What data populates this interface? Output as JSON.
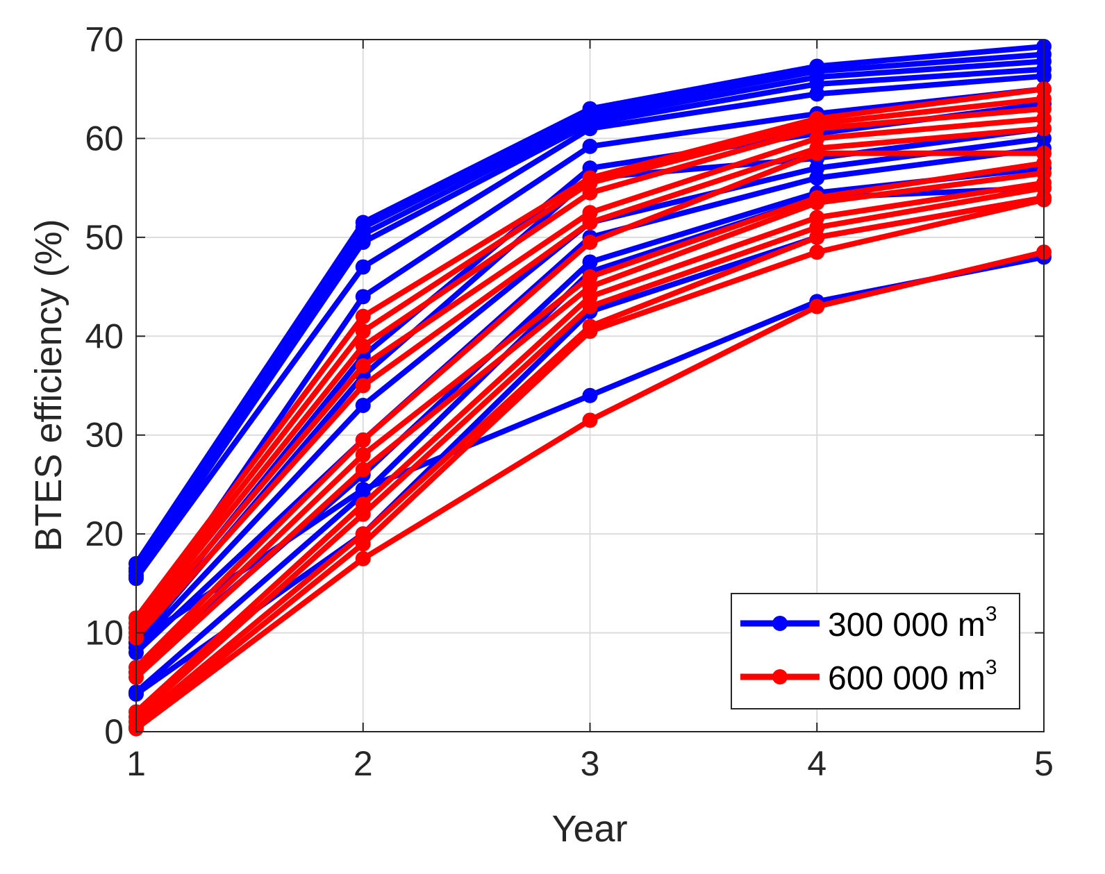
{
  "chart_data": {
    "type": "line",
    "title": "",
    "xlabel": "Year",
    "ylabel": "BTES efficiency (%)",
    "x": [
      1,
      2,
      3,
      4,
      5
    ],
    "xlim": [
      1,
      5
    ],
    "ylim": [
      0,
      70
    ],
    "xticks": [
      "1",
      "2",
      "3",
      "4",
      "5"
    ],
    "yticks": [
      "0",
      "10",
      "20",
      "30",
      "40",
      "50",
      "60",
      "70"
    ],
    "grid": true,
    "legend_position": "bottom-right",
    "legend": [
      {
        "label": "300 000 m",
        "sup": "3",
        "color": "#0000ff"
      },
      {
        "label": "600 000 m",
        "sup": "3",
        "color": "#ff0000"
      }
    ],
    "series": [
      {
        "name": "300 000 m3",
        "color": "#0000ff",
        "values": [
          17.0,
          51.5,
          63.0,
          67.3,
          69.3
        ]
      },
      {
        "name": "300 000 m3",
        "color": "#0000ff",
        "values": [
          16.5,
          51.0,
          62.5,
          66.8,
          68.5
        ]
      },
      {
        "name": "300 000 m3",
        "color": "#0000ff",
        "values": [
          16.2,
          50.3,
          62.0,
          66.2,
          67.8
        ]
      },
      {
        "name": "300 000 m3",
        "color": "#0000ff",
        "values": [
          15.8,
          49.5,
          61.5,
          65.5,
          67.0
        ]
      },
      {
        "name": "300 000 m3",
        "color": "#0000ff",
        "values": [
          15.5,
          47.0,
          61.0,
          64.5,
          66.3
        ]
      },
      {
        "name": "300 000 m3",
        "color": "#0000ff",
        "values": [
          10.5,
          44.0,
          59.2,
          62.5,
          65.0
        ]
      },
      {
        "name": "300 000 m3",
        "color": "#0000ff",
        "values": [
          9.5,
          38.0,
          57.0,
          60.5,
          63.5
        ]
      },
      {
        "name": "300 000 m3",
        "color": "#0000ff",
        "values": [
          9.0,
          36.0,
          56.0,
          58.0,
          61.0
        ]
      },
      {
        "name": "300 000 m3",
        "color": "#0000ff",
        "values": [
          8.5,
          33.0,
          51.5,
          57.0,
          60.0
        ]
      },
      {
        "name": "300 000 m3",
        "color": "#0000ff",
        "values": [
          8.0,
          29.5,
          50.0,
          56.0,
          59.0
        ]
      },
      {
        "name": "300 000 m3",
        "color": "#0000ff",
        "values": [
          6.0,
          26.0,
          47.5,
          54.5,
          57.0
        ]
      },
      {
        "name": "300 000 m3",
        "color": "#0000ff",
        "values": [
          4.0,
          24.0,
          46.5,
          54.0,
          55.0
        ]
      },
      {
        "name": "300 000 m3",
        "color": "#0000ff",
        "values": [
          3.8,
          20.0,
          42.5,
          50.0,
          54.0
        ]
      },
      {
        "name": "300 000 m3",
        "color": "#0000ff",
        "values": [
          9.0,
          24.5,
          34.0,
          43.5,
          48.0
        ]
      },
      {
        "name": "600 000 m3",
        "color": "#ff0000",
        "values": [
          11.5,
          42.0,
          56.0,
          62.0,
          65.0
        ]
      },
      {
        "name": "600 000 m3",
        "color": "#ff0000",
        "values": [
          11.0,
          40.5,
          55.5,
          61.5,
          64.0
        ]
      },
      {
        "name": "600 000 m3",
        "color": "#ff0000",
        "values": [
          10.5,
          39.0,
          54.5,
          61.0,
          63.0
        ]
      },
      {
        "name": "600 000 m3",
        "color": "#ff0000",
        "values": [
          10.0,
          37.0,
          52.5,
          60.0,
          62.0
        ]
      },
      {
        "name": "600 000 m3",
        "color": "#ff0000",
        "values": [
          9.5,
          35.0,
          51.5,
          59.0,
          61.0
        ]
      },
      {
        "name": "600 000 m3",
        "color": "#ff0000",
        "values": [
          6.5,
          29.5,
          49.5,
          58.5,
          58.5
        ]
      },
      {
        "name": "600 000 m3",
        "color": "#ff0000",
        "values": [
          6.0,
          28.0,
          46.0,
          54.0,
          57.5
        ]
      },
      {
        "name": "600 000 m3",
        "color": "#ff0000",
        "values": [
          5.5,
          26.5,
          45.0,
          53.5,
          56.5
        ]
      },
      {
        "name": "600 000 m3",
        "color": "#ff0000",
        "values": [
          2.0,
          23.0,
          44.0,
          52.0,
          55.5
        ]
      },
      {
        "name": "600 000 m3",
        "color": "#ff0000",
        "values": [
          1.5,
          22.0,
          43.0,
          51.0,
          55.0
        ]
      },
      {
        "name": "600 000 m3",
        "color": "#ff0000",
        "values": [
          1.0,
          20.0,
          41.0,
          50.0,
          54.0
        ]
      },
      {
        "name": "600 000 m3",
        "color": "#ff0000",
        "values": [
          0.5,
          19.0,
          40.5,
          48.5,
          53.8
        ]
      },
      {
        "name": "600 000 m3",
        "color": "#ff0000",
        "values": [
          0.3,
          17.5,
          31.5,
          43.0,
          48.5
        ]
      }
    ]
  }
}
